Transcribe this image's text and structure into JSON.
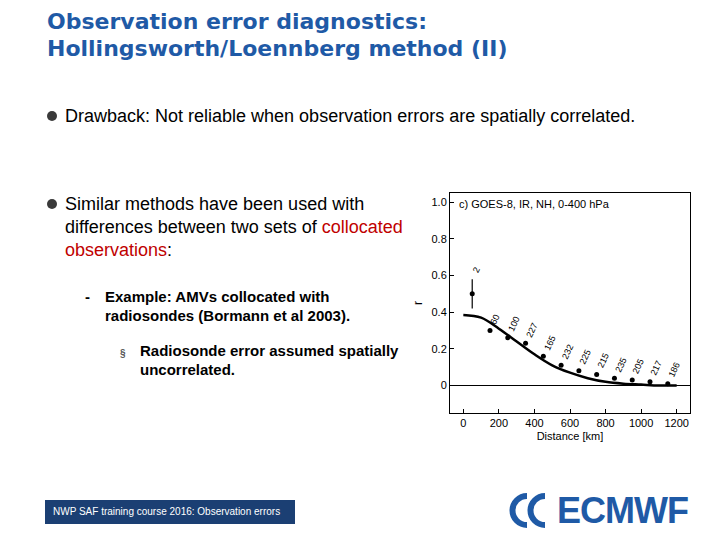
{
  "slide": {
    "title": [
      "Observation error diagnostics:",
      "Hollingsworth/Loennberg method (II)"
    ],
    "items": [
      {
        "level": 0,
        "segments": [
          {
            "text": "Drawback: Not reliable when observation errors are spatially correlated."
          }
        ]
      },
      {
        "level": 0,
        "segments": [
          {
            "text": "Similar methods have been used with differences between two sets of "
          },
          {
            "text": "collocated observations",
            "color": "#c00000"
          },
          {
            "text": ":"
          }
        ]
      },
      {
        "level": 1,
        "bullet": "-",
        "segments": [
          {
            "text": "Example: AMVs collocated with radiosondes (Bormann et al 2003)."
          }
        ]
      },
      {
        "level": 2,
        "bullet": "§",
        "segments": [
          {
            "text": "Radiosonde error assumed spatially uncorrelated."
          }
        ]
      }
    ],
    "footer": "NWP SAF training course 2016: Observation errors",
    "logo": "ECMWF"
  },
  "chart_data": {
    "type": "scatter",
    "title": "c) GOES-8, IR, NH, 0-400 hPa",
    "x_label": "Distance [km]",
    "y_label": "r",
    "x": [
      50,
      150,
      250,
      350,
      450,
      550,
      650,
      750,
      850,
      950,
      1050,
      1150
    ],
    "values": [
      0.5,
      0.3,
      0.26,
      0.23,
      0.16,
      0.11,
      0.08,
      0.06,
      0.04,
      0.03,
      0.02,
      0.01
    ],
    "errors": [
      0.08,
      0,
      0,
      0,
      0,
      0,
      0,
      0,
      0,
      0,
      0,
      0
    ],
    "counts": [
      2,
      60,
      100,
      227,
      165,
      232,
      225,
      215,
      235,
      205,
      217,
      186
    ],
    "color": "#000000",
    "marker": "circle",
    "fit": {
      "type": "line",
      "x": [
        0,
        100,
        200,
        300,
        400,
        500,
        600,
        700,
        800,
        900,
        1000,
        1100,
        1200
      ],
      "values": [
        0.385,
        0.37,
        0.31,
        0.24,
        0.17,
        0.11,
        0.07,
        0.04,
        0.02,
        0.01,
        0.005,
        0,
        0
      ]
    },
    "xlim": [
      -75,
      1275
    ],
    "ylim": [
      -0.15,
      1.05
    ],
    "xticks": [
      0,
      200,
      400,
      600,
      800,
      1000,
      1200
    ],
    "yticks": [
      0,
      0.2,
      0.4,
      0.6,
      0.8,
      {
        "value": 1,
        "label": "1.0"
      }
    ],
    "grid": false
  }
}
